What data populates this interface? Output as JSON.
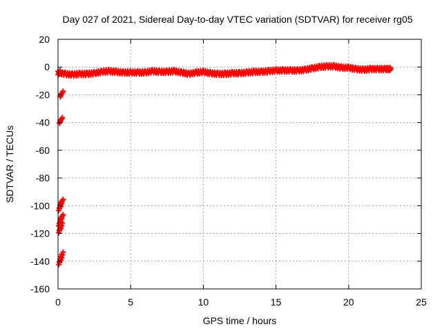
{
  "chart_data": {
    "type": "scatter",
    "title": "Day 027 of 2021, Sidereal Day-to-day VTEC variation (SDTVAR) for receiver rg05",
    "xlabel": "GPS time / hours",
    "ylabel": "SDTVAR / TECUs",
    "xlim": [
      0,
      25
    ],
    "ylim": [
      -160,
      20
    ],
    "xticks": [
      "0",
      "5",
      "10",
      "15",
      "20",
      "25"
    ],
    "yticks": [
      "20",
      "0",
      "-20",
      "-40",
      "-60",
      "-80",
      "-100",
      "-120",
      "-140",
      "-160"
    ],
    "grid": true,
    "marker": "plus",
    "color": "#ff0000",
    "series": [
      {
        "trend": [
          [
            0.0,
            -4
          ],
          [
            0.5,
            -5
          ],
          [
            1.0,
            -5.5
          ],
          [
            1.5,
            -5
          ],
          [
            2.0,
            -5
          ],
          [
            2.5,
            -4.5
          ],
          [
            3.0,
            -3.5
          ],
          [
            3.5,
            -3
          ],
          [
            4.0,
            -3.5
          ],
          [
            4.5,
            -4
          ],
          [
            5.0,
            -4
          ],
          [
            5.5,
            -4
          ],
          [
            6.0,
            -4
          ],
          [
            6.5,
            -3
          ],
          [
            7.0,
            -3.5
          ],
          [
            7.5,
            -3.5
          ],
          [
            8.0,
            -3
          ],
          [
            8.5,
            -4
          ],
          [
            9.0,
            -5
          ],
          [
            9.5,
            -4
          ],
          [
            10.0,
            -3.5
          ],
          [
            10.5,
            -4.5
          ],
          [
            11.0,
            -5
          ],
          [
            11.5,
            -5
          ],
          [
            12.0,
            -4.5
          ],
          [
            12.5,
            -4.5
          ],
          [
            13.0,
            -4
          ],
          [
            13.5,
            -3.5
          ],
          [
            14.0,
            -3.5
          ],
          [
            14.5,
            -3
          ],
          [
            15.0,
            -2.5
          ],
          [
            15.5,
            -2.5
          ],
          [
            16.0,
            -2.5
          ],
          [
            16.5,
            -2.5
          ],
          [
            17.0,
            -2
          ],
          [
            17.5,
            -1
          ],
          [
            18.0,
            0
          ],
          [
            18.5,
            0.5
          ],
          [
            19.0,
            0.5
          ],
          [
            19.5,
            -0.5
          ],
          [
            20.0,
            -0.5
          ],
          [
            20.5,
            -1.5
          ],
          [
            21.0,
            -2
          ],
          [
            21.5,
            -1.5
          ],
          [
            22.0,
            -1.5
          ],
          [
            22.5,
            -1.5
          ],
          [
            22.9,
            -1.5
          ]
        ],
        "outliers": [
          [
            0.05,
            -4
          ],
          [
            0.2,
            -20
          ],
          [
            0.25,
            -19
          ],
          [
            0.15,
            -39
          ],
          [
            0.2,
            -38
          ],
          [
            0.1,
            -102
          ],
          [
            0.15,
            -100
          ],
          [
            0.2,
            -98
          ],
          [
            0.25,
            -97
          ],
          [
            0.1,
            -113
          ],
          [
            0.15,
            -111
          ],
          [
            0.2,
            -109
          ],
          [
            0.25,
            -108
          ],
          [
            0.1,
            -118
          ],
          [
            0.15,
            -116
          ],
          [
            0.2,
            -114
          ],
          [
            0.1,
            -141
          ],
          [
            0.15,
            -139
          ],
          [
            0.2,
            -137
          ],
          [
            0.25,
            -135
          ]
        ]
      }
    ]
  }
}
